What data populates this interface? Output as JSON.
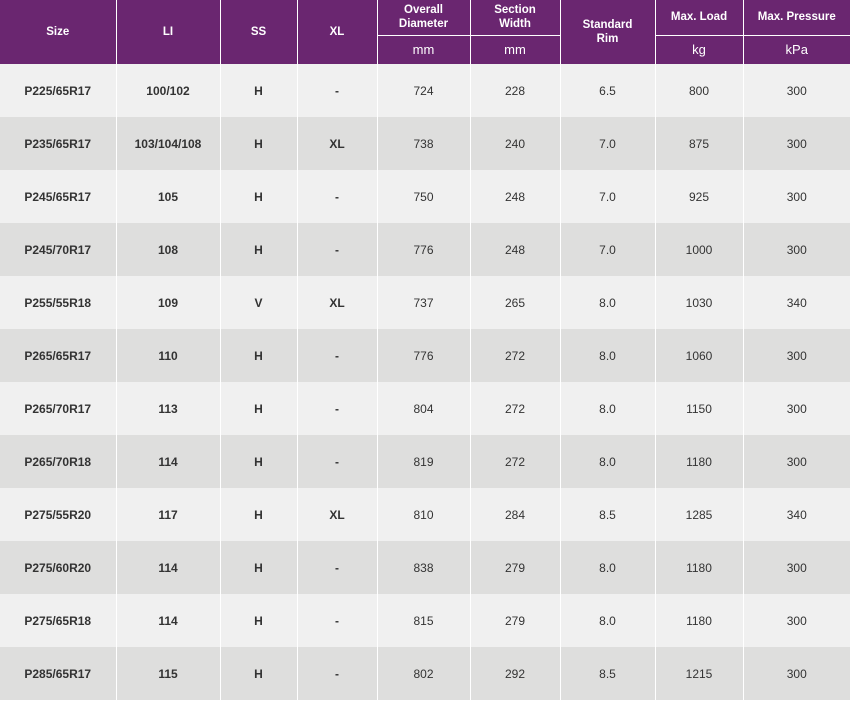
{
  "header": {
    "size": "Size",
    "li": "LI",
    "ss": "SS",
    "xl": "XL",
    "overall_diameter": "Overall\nDiameter",
    "section_width": "Section\nWidth",
    "standard_rim": "Standard\nRim",
    "max_load": "Max. Load",
    "max_pressure": "Max. Pressure",
    "unit_mm_1": "mm",
    "unit_mm_2": "mm",
    "unit_kg": "kg",
    "unit_kpa": "kPa"
  },
  "rows": [
    {
      "size": "P225/65R17",
      "li": "100/102",
      "ss": "H",
      "xl": "-",
      "od": "724",
      "sw": "228",
      "rim": "6.5",
      "load": "800",
      "pressure": "300"
    },
    {
      "size": "P235/65R17",
      "li": "103/104/108",
      "ss": "H",
      "xl": "XL",
      "od": "738",
      "sw": "240",
      "rim": "7.0",
      "load": "875",
      "pressure": "300"
    },
    {
      "size": "P245/65R17",
      "li": "105",
      "ss": "H",
      "xl": "-",
      "od": "750",
      "sw": "248",
      "rim": "7.0",
      "load": "925",
      "pressure": "300"
    },
    {
      "size": "P245/70R17",
      "li": "108",
      "ss": "H",
      "xl": "-",
      "od": "776",
      "sw": "248",
      "rim": "7.0",
      "load": "1000",
      "pressure": "300"
    },
    {
      "size": "P255/55R18",
      "li": "109",
      "ss": "V",
      "xl": "XL",
      "od": "737",
      "sw": "265",
      "rim": "8.0",
      "load": "1030",
      "pressure": "340"
    },
    {
      "size": "P265/65R17",
      "li": "110",
      "ss": "H",
      "xl": "-",
      "od": "776",
      "sw": "272",
      "rim": "8.0",
      "load": "1060",
      "pressure": "300"
    },
    {
      "size": "P265/70R17",
      "li": "113",
      "ss": "H",
      "xl": "-",
      "od": "804",
      "sw": "272",
      "rim": "8.0",
      "load": "1150",
      "pressure": "300"
    },
    {
      "size": "P265/70R18",
      "li": "114",
      "ss": "H",
      "xl": "-",
      "od": "819",
      "sw": "272",
      "rim": "8.0",
      "load": "1180",
      "pressure": "300"
    },
    {
      "size": "P275/55R20",
      "li": "117",
      "ss": "H",
      "xl": "XL",
      "od": "810",
      "sw": "284",
      "rim": "8.5",
      "load": "1285",
      "pressure": "340"
    },
    {
      "size": "P275/60R20",
      "li": "114",
      "ss": "H",
      "xl": "-",
      "od": "838",
      "sw": "279",
      "rim": "8.0",
      "load": "1180",
      "pressure": "300"
    },
    {
      "size": "P275/65R18",
      "li": "114",
      "ss": "H",
      "xl": "-",
      "od": "815",
      "sw": "279",
      "rim": "8.0",
      "load": "1180",
      "pressure": "300"
    },
    {
      "size": "P285/65R17",
      "li": "115",
      "ss": "H",
      "xl": "-",
      "od": "802",
      "sw": "292",
      "rim": "8.5",
      "load": "1215",
      "pressure": "300"
    }
  ],
  "colors": {
    "header_bg": "#6a2670",
    "row_light": "#f0f0f0",
    "row_dark": "#dededd",
    "text": "#333333"
  }
}
